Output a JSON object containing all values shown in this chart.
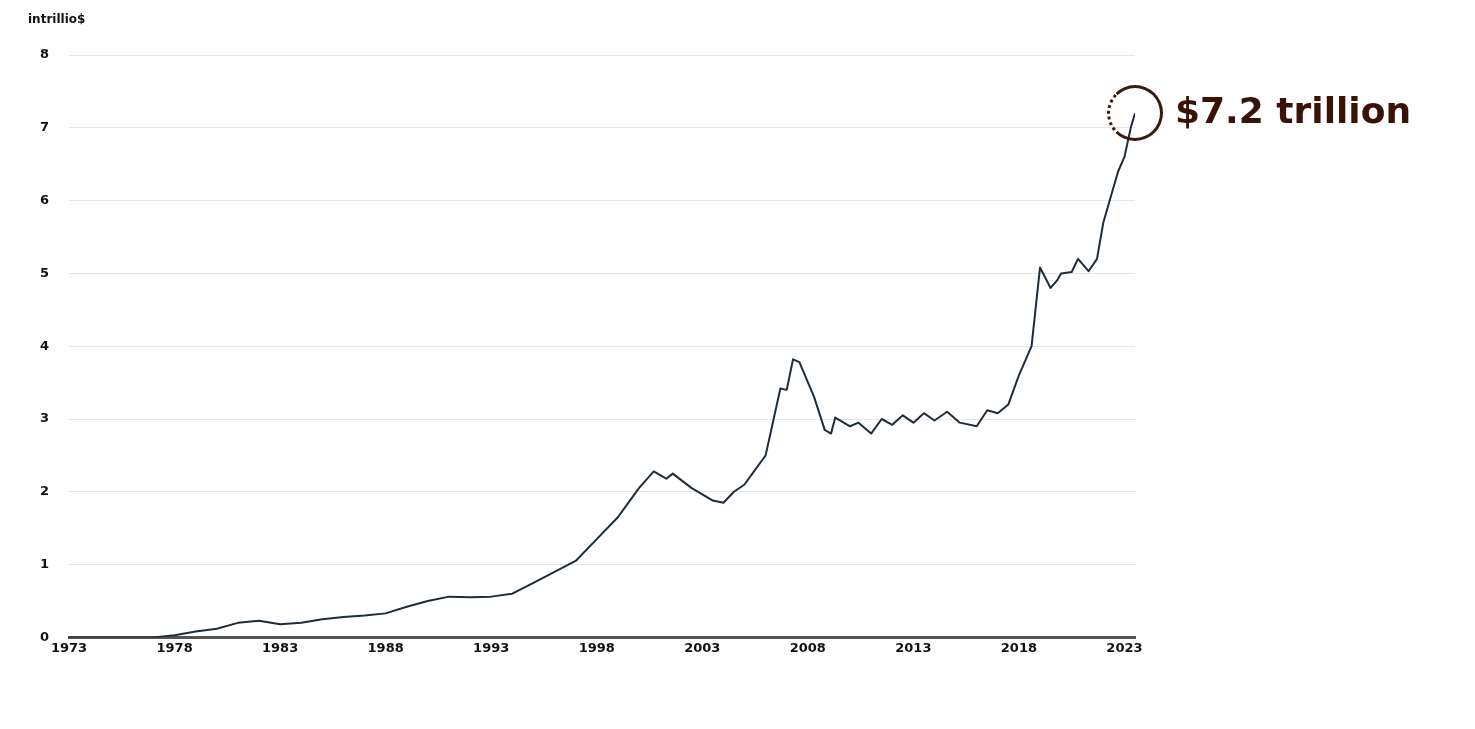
{
  "chart_data": {
    "type": "line",
    "ylabel": "intrillio$",
    "x": [
      1973,
      1977,
      1978,
      1979,
      1980,
      1981,
      1982,
      1983,
      1984,
      1985,
      1986,
      1987,
      1988,
      1989,
      1990,
      1991,
      1992,
      1993,
      1994,
      1995,
      1996,
      1997,
      1998,
      1999,
      2000,
      2000.7,
      2001.3,
      2001.6,
      2002.5,
      2003.5,
      2004,
      2004.5,
      2005,
      2005.5,
      2006,
      2006.7,
      2007,
      2007.3,
      2007.6,
      2008.3,
      2008.8,
      2009.1,
      2009.3,
      2010,
      2010.4,
      2011,
      2011.5,
      2012,
      2012.5,
      2013,
      2013.5,
      2014,
      2014.6,
      2015.2,
      2016,
      2016.5,
      2017,
      2017.5,
      2018,
      2018.6,
      2019,
      2019.5,
      2019.8,
      2020,
      2020.5,
      2020.8,
      2021.3,
      2021.7,
      2022,
      2022.4,
      2022.7,
      2023,
      2023.3,
      2023.5
    ],
    "series": [
      {
        "color": "#1f2d3a",
        "values": [
          0,
          0,
          0.03,
          0.08,
          0.12,
          0.2,
          0.23,
          0.18,
          0.2,
          0.25,
          0.28,
          0.3,
          0.33,
          0.42,
          0.5,
          0.56,
          0.55,
          0.56,
          0.6,
          0.75,
          0.9,
          1.05,
          1.35,
          1.65,
          2.05,
          2.28,
          2.18,
          2.25,
          2.05,
          1.88,
          1.85,
          2.0,
          2.1,
          2.3,
          2.5,
          3.42,
          3.4,
          3.82,
          3.78,
          3.3,
          2.85,
          2.8,
          3.02,
          2.9,
          2.95,
          2.8,
          3.0,
          2.92,
          3.05,
          2.95,
          3.08,
          2.98,
          3.1,
          2.95,
          2.9,
          3.12,
          3.08,
          3.2,
          3.6,
          4.0,
          5.08,
          4.8,
          4.9,
          5.0,
          5.02,
          5.2,
          5.03,
          5.2,
          5.7,
          6.1,
          6.4,
          6.6,
          7.0,
          7.2
        ]
      }
    ],
    "xlim": [
      1973,
      2023.5
    ],
    "xticks": [
      1973,
      1978,
      1983,
      1988,
      1993,
      1998,
      2003,
      2008,
      2013,
      2018,
      2023
    ],
    "ylim": [
      0,
      8
    ],
    "yticks": [
      0,
      1,
      2,
      3,
      4,
      5,
      6,
      7,
      8
    ],
    "grid": "y",
    "marker": "none",
    "line_style": "solid",
    "legend": false,
    "annotations": [
      {
        "text": "$7.2 trillion",
        "x": 2023.5,
        "y": 7.2
      }
    ]
  }
}
